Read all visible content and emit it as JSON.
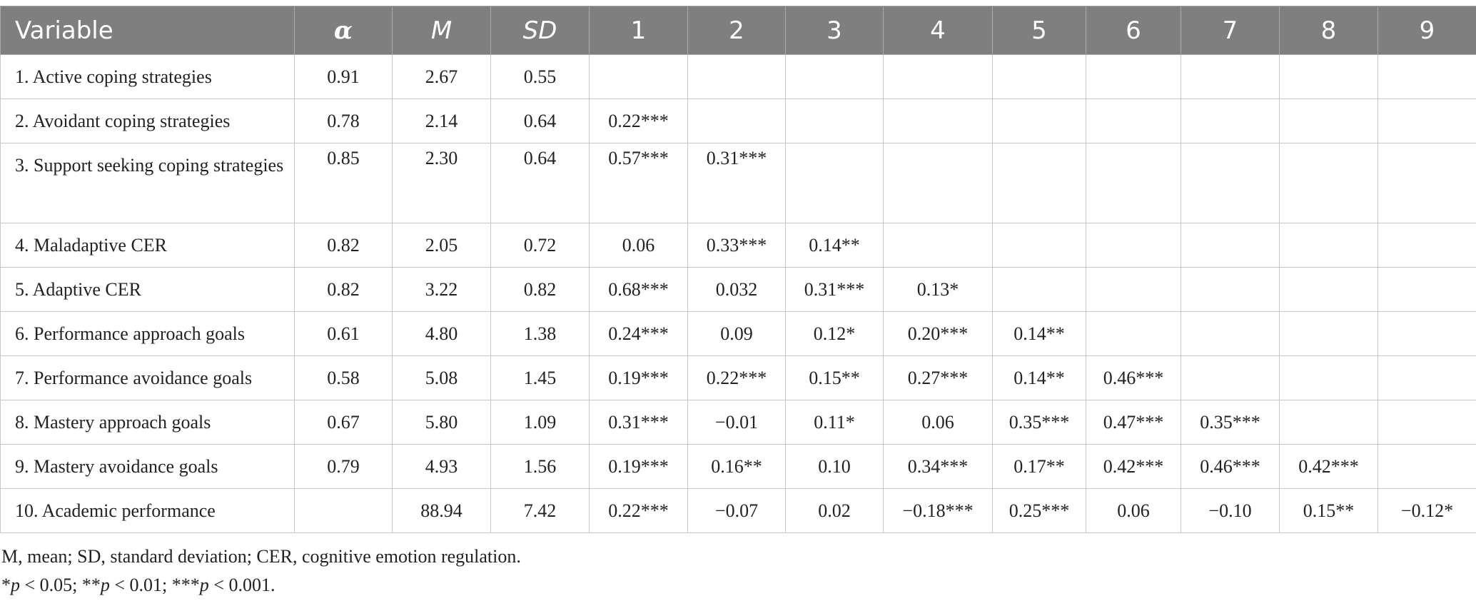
{
  "table": {
    "headers": [
      "Variable",
      "α",
      "M",
      "SD",
      "1",
      "2",
      "3",
      "4",
      "5",
      "6",
      "7",
      "8",
      "9"
    ],
    "rows": [
      [
        "1. Active coping strategies",
        "0.91",
        "2.67",
        "0.55",
        "",
        "",
        "",
        "",
        "",
        "",
        "",
        "",
        ""
      ],
      [
        "2. Avoidant coping strategies",
        "0.78",
        "2.14",
        "0.64",
        "0.22***",
        "",
        "",
        "",
        "",
        "",
        "",
        "",
        ""
      ],
      [
        "3. Support seeking coping strategies",
        "0.85",
        "2.30",
        "0.64",
        "0.57***",
        "0.31***",
        "",
        "",
        "",
        "",
        "",
        "",
        ""
      ],
      [
        "4. Maladaptive CER",
        "0.82",
        "2.05",
        "0.72",
        "0.06",
        "0.33***",
        "0.14**",
        "",
        "",
        "",
        "",
        "",
        ""
      ],
      [
        "5. Adaptive CER",
        "0.82",
        "3.22",
        "0.82",
        "0.68***",
        "0.032",
        "0.31***",
        "0.13*",
        "",
        "",
        "",
        "",
        ""
      ],
      [
        "6. Performance approach goals",
        "0.61",
        "4.80",
        "1.38",
        "0.24***",
        "0.09",
        "0.12*",
        "0.20***",
        "0.14**",
        "",
        "",
        "",
        ""
      ],
      [
        "7. Performance avoidance goals",
        "0.58",
        "5.08",
        "1.45",
        "0.19***",
        "0.22***",
        "0.15**",
        "0.27***",
        "0.14**",
        "0.46***",
        "",
        "",
        ""
      ],
      [
        "8. Mastery approach goals",
        "0.67",
        "5.80",
        "1.09",
        "0.31***",
        "−0.01",
        "0.11*",
        "0.06",
        "0.35***",
        "0.47***",
        "0.35***",
        "",
        ""
      ],
      [
        "9. Mastery avoidance goals",
        "0.79",
        "4.93",
        "1.56",
        "0.19***",
        "0.16**",
        "0.10",
        "0.34***",
        "0.17**",
        "0.42***",
        "0.46***",
        "0.42***",
        ""
      ],
      [
        "10. Academic performance",
        "",
        "88.94",
        "7.42",
        "0.22***",
        "−0.07",
        "0.02",
        "−0.18***",
        "0.25***",
        "0.06",
        "−0.10",
        "0.15**",
        "−0.12*"
      ]
    ]
  },
  "notes": {
    "abbreviations": "M, mean; SD, standard deviation; CER, cognitive emotion regulation.",
    "sig": [
      {
        "stars": "*",
        "p": "p",
        "text": " < 0.05; "
      },
      {
        "stars": "**",
        "p": "p",
        "text": " < 0.01; "
      },
      {
        "stars": "***",
        "p": "p",
        "text": " < 0.001."
      }
    ]
  }
}
